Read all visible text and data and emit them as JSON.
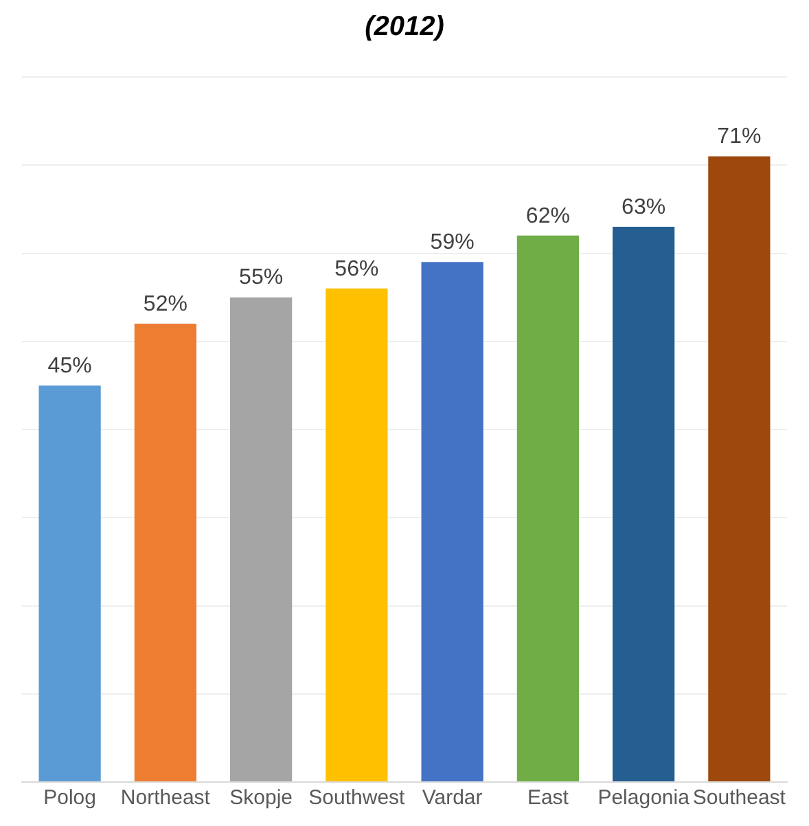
{
  "chart_data": {
    "type": "bar",
    "title": "(2012)",
    "categories": [
      "Polog",
      "Northeast",
      "Skopje",
      "Southwest",
      "Vardar",
      "East",
      "Pelagonia",
      "Southeast"
    ],
    "values": [
      45,
      52,
      55,
      56,
      59,
      62,
      63,
      71
    ],
    "colors": [
      "#5b9bd5",
      "#ed7d31",
      "#a5a5a5",
      "#ffc000",
      "#4472c4",
      "#70ad47",
      "#255e91",
      "#9e480e"
    ],
    "value_labels": [
      "45%",
      "52%",
      "55%",
      "56%",
      "59%",
      "62%",
      "63%",
      "71%"
    ],
    "grid": "y",
    "tick_labels": "x"
  }
}
